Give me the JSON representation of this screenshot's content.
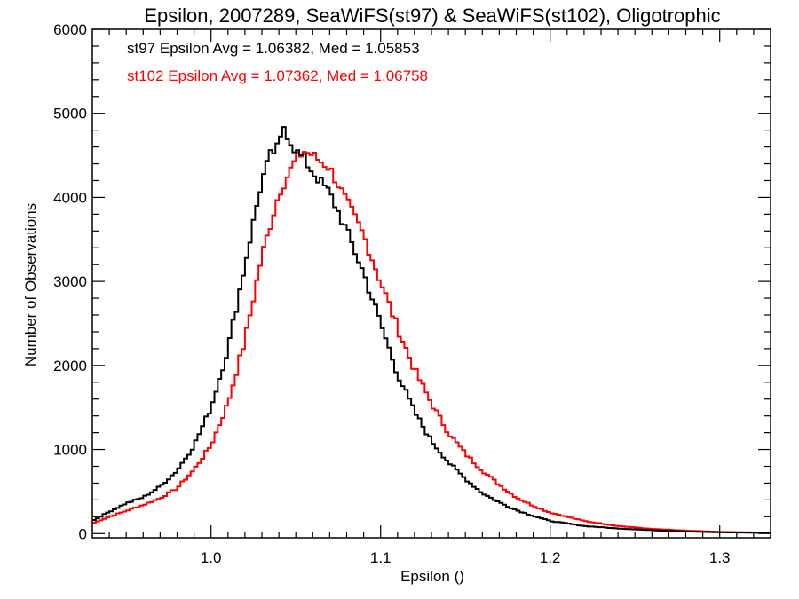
{
  "chart_data": {
    "type": "line",
    "step": true,
    "title": "Epsilon, 2007289, SeaWiFS(st97) & SeaWiFS(st102), Oligotrophic",
    "xlabel": "Epsilon ()",
    "ylabel": "Number of Observations",
    "xlim": [
      0.93,
      1.33
    ],
    "ylim": [
      -50,
      6000
    ],
    "x_ticks": [
      1.0,
      1.1,
      1.2,
      1.3
    ],
    "x_tick_labels": [
      "1.0",
      "1.1",
      "1.2",
      "1.3"
    ],
    "y_ticks": [
      0,
      1000,
      2000,
      3000,
      4000,
      5000,
      6000
    ],
    "y_tick_labels": [
      "0",
      "1000",
      "2000",
      "3000",
      "4000",
      "5000",
      "6000"
    ],
    "bin_width": 0.002,
    "annotations": [
      {
        "text": "st97 Epsilon Avg = 1.06382, Med = 1.05853",
        "color": "#000000"
      },
      {
        "text": "st102 Epsilon Avg = 1.07362, Med = 1.06758",
        "color": "#ff0000"
      }
    ],
    "series": [
      {
        "color": "#000000",
        "points": [
          [
            0.93,
            150
          ],
          [
            0.94,
            260
          ],
          [
            0.95,
            360
          ],
          [
            0.96,
            430
          ],
          [
            0.97,
            560
          ],
          [
            0.98,
            750
          ],
          [
            0.99,
            1050
          ],
          [
            1.0,
            1500
          ],
          [
            1.01,
            2200
          ],
          [
            1.02,
            3200
          ],
          [
            1.03,
            4200
          ],
          [
            1.035,
            4500
          ],
          [
            1.04,
            4600
          ],
          [
            1.043,
            4850
          ],
          [
            1.046,
            4700
          ],
          [
            1.05,
            4550
          ],
          [
            1.055,
            4450
          ],
          [
            1.06,
            4300
          ],
          [
            1.07,
            4050
          ],
          [
            1.08,
            3600
          ],
          [
            1.09,
            3100
          ],
          [
            1.1,
            2500
          ],
          [
            1.11,
            1900
          ],
          [
            1.12,
            1450
          ],
          [
            1.13,
            1100
          ],
          [
            1.14,
            850
          ],
          [
            1.15,
            650
          ],
          [
            1.16,
            480
          ],
          [
            1.17,
            370
          ],
          [
            1.18,
            280
          ],
          [
            1.19,
            210
          ],
          [
            1.2,
            150
          ],
          [
            1.22,
            90
          ],
          [
            1.24,
            60
          ],
          [
            1.26,
            40
          ],
          [
            1.28,
            25
          ],
          [
            1.3,
            15
          ],
          [
            1.33,
            8
          ]
        ]
      },
      {
        "color": "#ff0000",
        "points": [
          [
            0.93,
            120
          ],
          [
            0.94,
            200
          ],
          [
            0.95,
            270
          ],
          [
            0.96,
            340
          ],
          [
            0.97,
            420
          ],
          [
            0.98,
            540
          ],
          [
            0.99,
            760
          ],
          [
            1.0,
            1050
          ],
          [
            1.01,
            1550
          ],
          [
            1.02,
            2300
          ],
          [
            1.03,
            3300
          ],
          [
            1.04,
            4050
          ],
          [
            1.05,
            4450
          ],
          [
            1.055,
            4550
          ],
          [
            1.06,
            4500
          ],
          [
            1.07,
            4350
          ],
          [
            1.08,
            3950
          ],
          [
            1.09,
            3550
          ],
          [
            1.1,
            3000
          ],
          [
            1.11,
            2450
          ],
          [
            1.12,
            1950
          ],
          [
            1.13,
            1550
          ],
          [
            1.14,
            1200
          ],
          [
            1.15,
            950
          ],
          [
            1.16,
            750
          ],
          [
            1.17,
            580
          ],
          [
            1.18,
            430
          ],
          [
            1.19,
            330
          ],
          [
            1.2,
            250
          ],
          [
            1.22,
            150
          ],
          [
            1.24,
            90
          ],
          [
            1.26,
            55
          ],
          [
            1.28,
            35
          ],
          [
            1.3,
            20
          ],
          [
            1.33,
            10
          ]
        ]
      }
    ]
  }
}
